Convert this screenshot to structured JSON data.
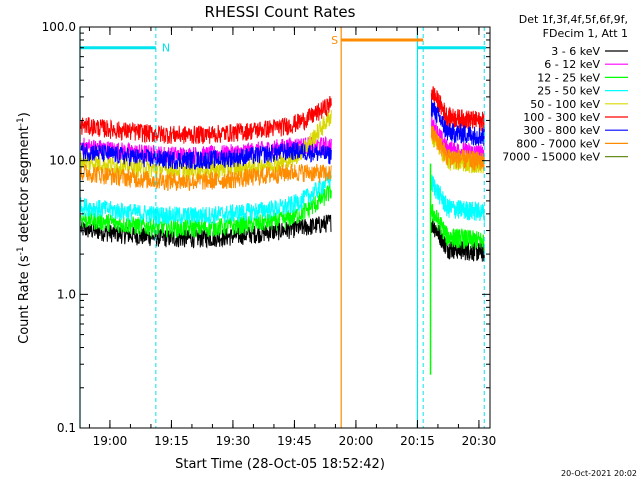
{
  "chart_data": {
    "type": "line",
    "title": "RHESSI Count Rates",
    "xlabel": "Start Time (28-Oct-05 18:52:42)",
    "ylabel_parts": [
      "Count Rate (s",
      "-1",
      " detector segment",
      "-1",
      ")"
    ],
    "yscale": "log",
    "ylim": [
      0.1,
      100.0
    ],
    "yticks": [
      0.1,
      1.0,
      10.0,
      100.0
    ],
    "ytick_labels": [
      "0.1",
      "1.0",
      "10.0",
      "100.0"
    ],
    "x_unit": "minutes since 18:52:42",
    "xlim": [
      0,
      100
    ],
    "xticks": [
      7.3,
      22.3,
      37.3,
      52.3,
      67.3,
      82.3,
      97.3
    ],
    "xtick_labels": [
      "19:00",
      "19:15",
      "19:30",
      "19:45",
      "20:00",
      "20:15",
      "20:30"
    ],
    "legend_header": [
      "Det 1f,3f,4f,5f,6f,9f,",
      "FDecim 1, Att 1"
    ],
    "legend_placement": "right",
    "timestamp": "20-Oct-2021 20:02",
    "attenuator_markers": [
      {
        "label": "N",
        "color": "#00e5ee",
        "start": 0,
        "end": 18.5,
        "level": 70
      },
      {
        "label": "S",
        "color": "#ff8c00",
        "start": 63.7,
        "end": 83.7,
        "level": 80
      },
      {
        "label": "",
        "color": "#00e5ee",
        "start": 82.3,
        "end": 99,
        "level": 70
      }
    ],
    "cyan_dashed_lines": [
      18.5,
      83.7,
      98.6
    ],
    "cyan_solid_lines": [
      0,
      82.3
    ],
    "orange_solid_line": 63.7,
    "data_gap": [
      61.3,
      85.7
    ],
    "glitch": {
      "x": 85.5,
      "from": 9.5,
      "to": 0.25
    },
    "series": [
      {
        "name": "3 - 6 keV",
        "color": "#000000",
        "start_level": 3.1,
        "end_level": 2.3,
        "pre_gap_end": 3.5
      },
      {
        "name": "6 - 12 keV",
        "color": "#ff00ff",
        "start_level": 13.0,
        "end_level": 12.5,
        "pre_gap_end": 13.0
      },
      {
        "name": "12 - 25 keV",
        "color": "#00ff00",
        "start_level": 3.7,
        "end_level": 2.8,
        "pre_gap_end": 6.0
      },
      {
        "name": "25 - 50 keV",
        "color": "#00ffff",
        "start_level": 4.6,
        "end_level": 4.6,
        "pre_gap_end": 7.5
      },
      {
        "name": "50 - 100 keV",
        "color": "#d8d800",
        "start_level": 10.0,
        "end_level": 10.5,
        "pre_gap_end": 22.0
      },
      {
        "name": "100 - 300 keV",
        "color": "#ff0000",
        "start_level": 18.5,
        "end_level": 22.0,
        "pre_gap_end": 27.0
      },
      {
        "name": "300 - 800 keV",
        "color": "#0000ff",
        "start_level": 12.0,
        "end_level": 17.0,
        "pre_gap_end": 11.0
      },
      {
        "name": "800 - 7000 keV",
        "color": "#ff8c00",
        "start_level": 8.3,
        "end_level": 11.0,
        "pre_gap_end": 8.0
      },
      {
        "name": "7000 - 15000 keV",
        "color": "#6b8e23",
        "start_level": null,
        "end_level": null,
        "pre_gap_end": null
      }
    ]
  }
}
